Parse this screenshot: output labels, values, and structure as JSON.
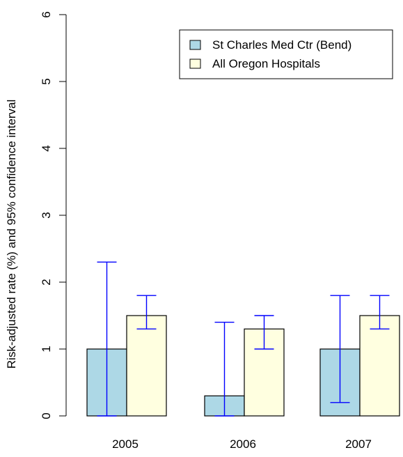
{
  "chart_data": {
    "type": "bar",
    "title": "",
    "xlabel": "",
    "ylabel": "Risk-adjusted rate (%) and 95% confidence interval",
    "categories": [
      "2005",
      "2006",
      "2007"
    ],
    "ylim": [
      0,
      6
    ],
    "yticks": [
      0,
      1,
      2,
      3,
      4,
      5,
      6
    ],
    "grid": false,
    "legend_position": "top-right",
    "error_bar_color": "#0000ff",
    "series": [
      {
        "name": "St Charles Med Ctr (Bend)",
        "color": "#add8e6",
        "values": [
          1.0,
          0.3,
          1.0
        ],
        "ci_low": [
          0.0,
          0.0,
          0.2
        ],
        "ci_high": [
          2.3,
          1.4,
          1.8
        ]
      },
      {
        "name": "All Oregon Hospitals",
        "color": "#ffffe0",
        "values": [
          1.5,
          1.3,
          1.5
        ],
        "ci_low": [
          1.3,
          1.0,
          1.3
        ],
        "ci_high": [
          1.8,
          1.5,
          1.8
        ]
      }
    ]
  }
}
